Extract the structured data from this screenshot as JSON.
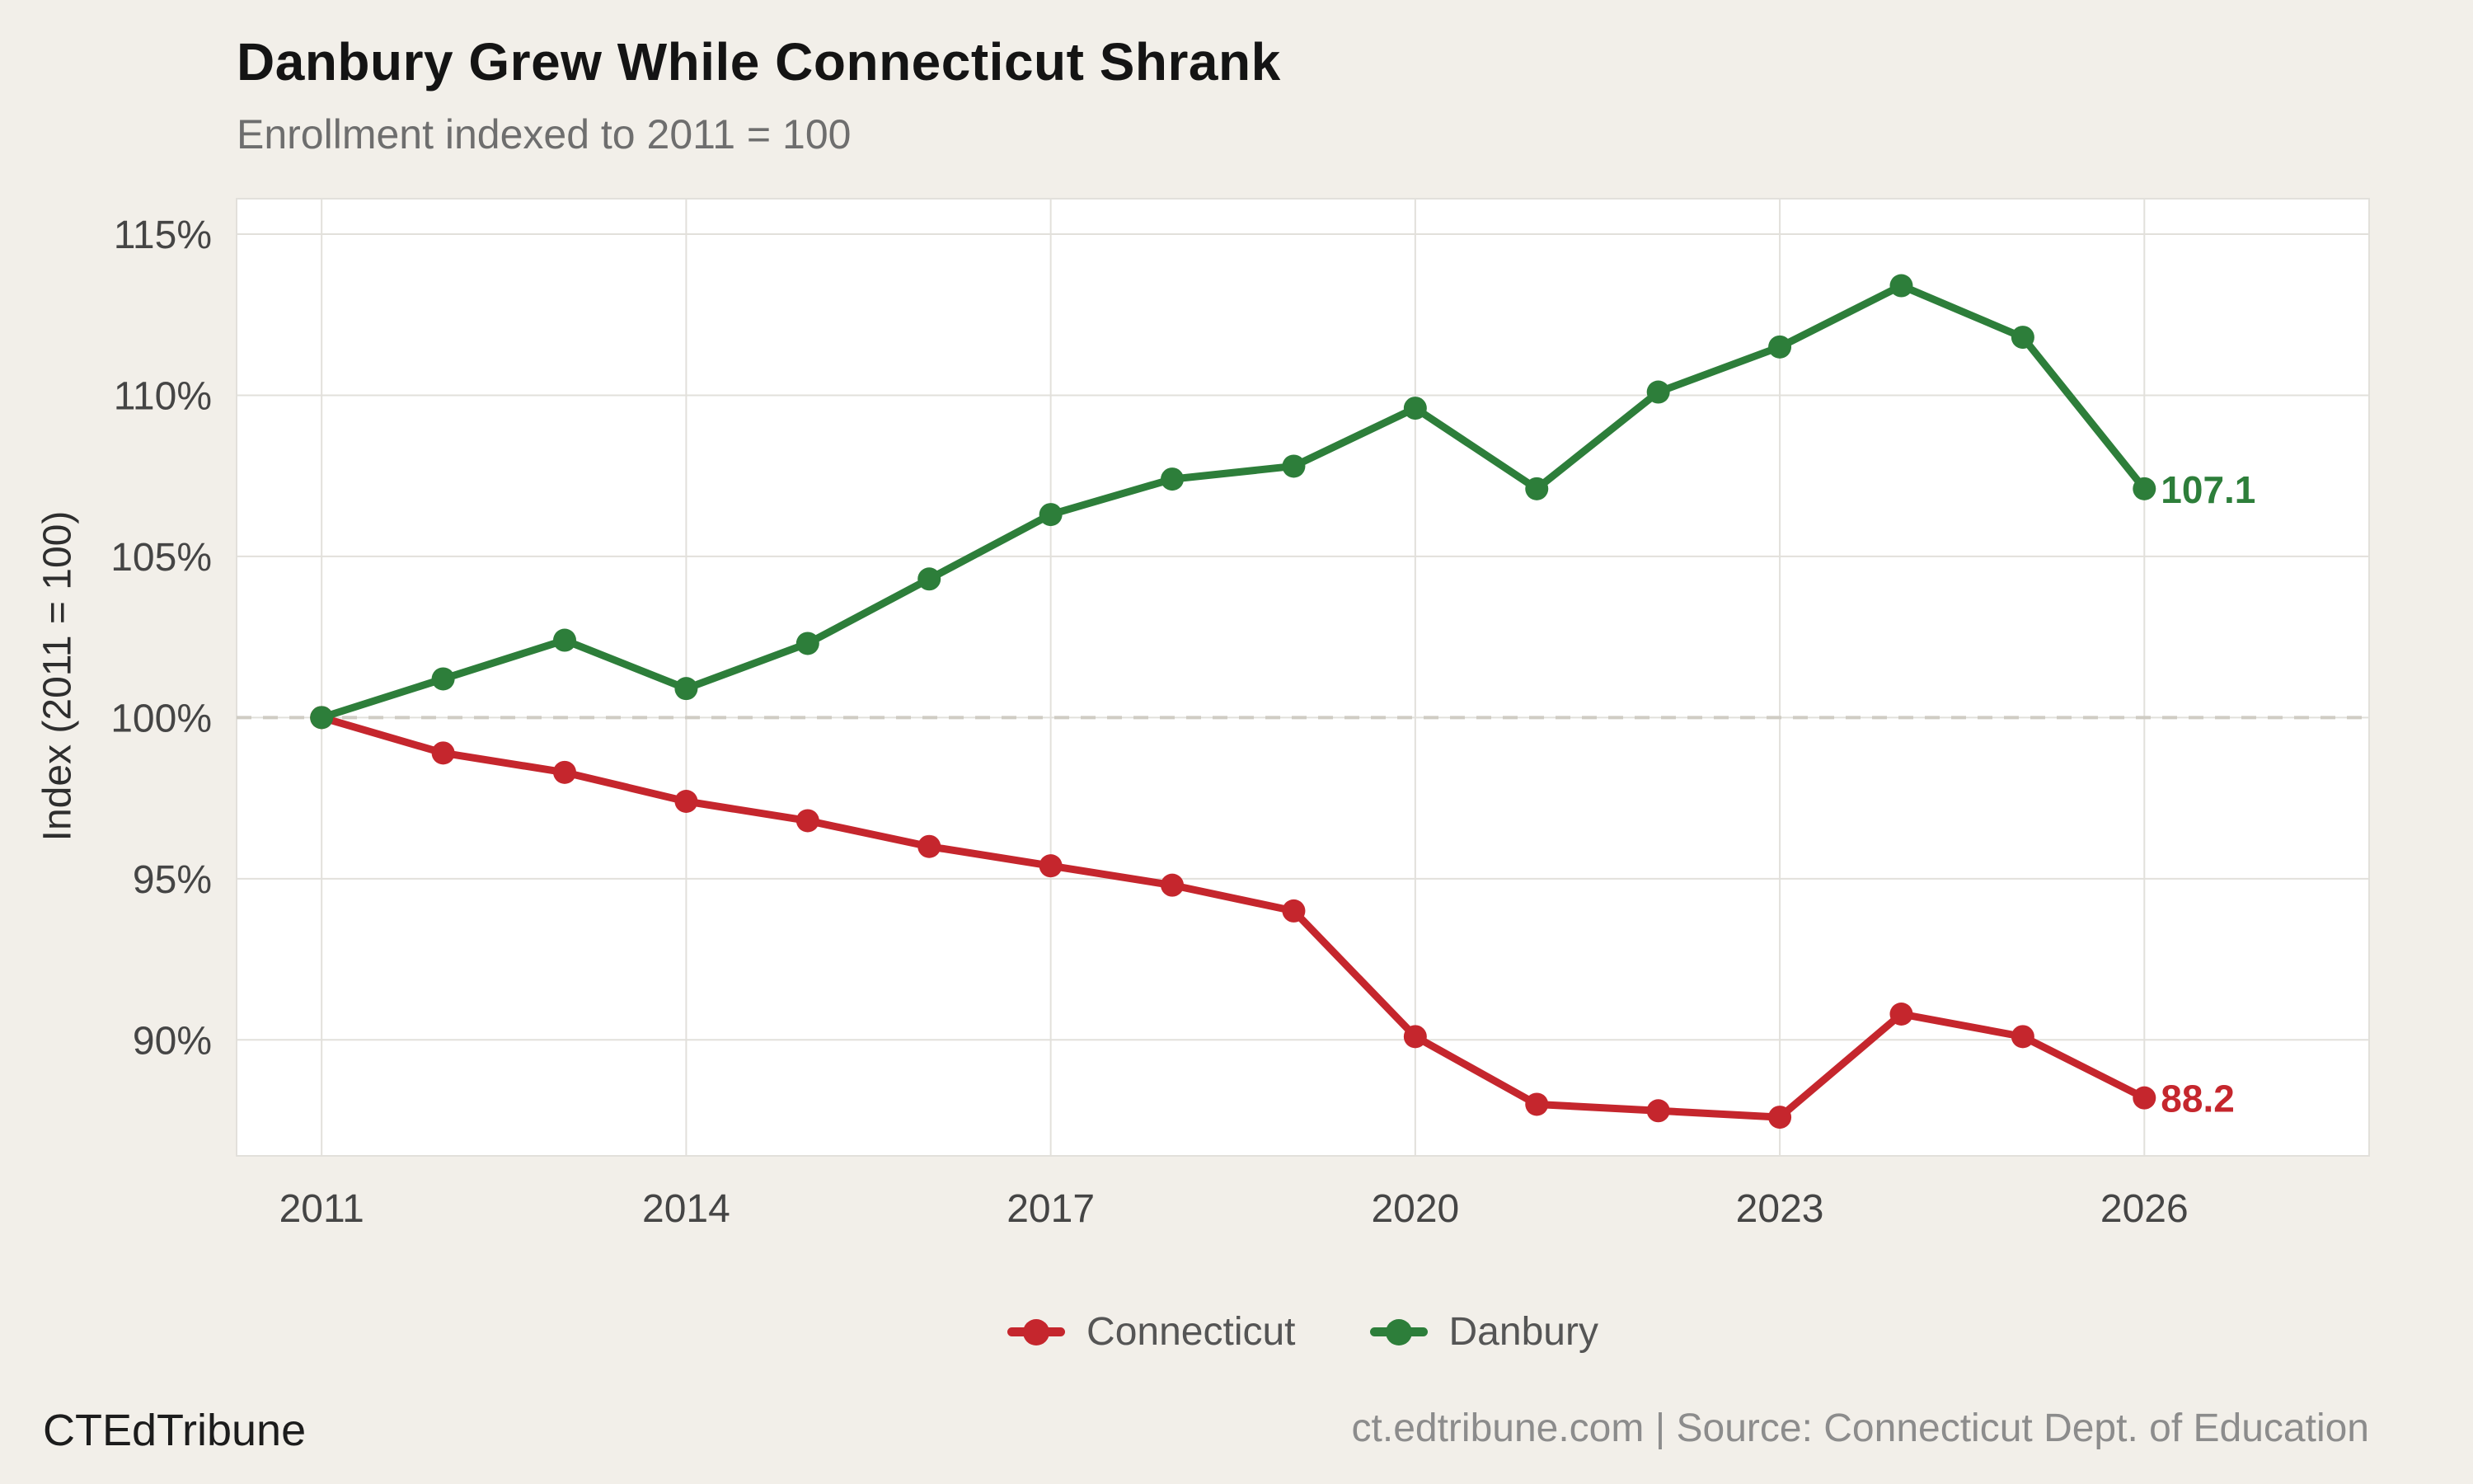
{
  "header": {
    "title": "Danbury Grew While Connecticut Shrank",
    "subtitle": "Enrollment indexed to 2011 = 100"
  },
  "footer": {
    "brand": "CTEdTribune",
    "source": "ct.edtribune.com | Source: Connecticut Dept. of Education"
  },
  "colors": {
    "background": "#f2efe9",
    "plot_background": "#ffffff",
    "grid": "#e2e0db",
    "reference_line": "#cfccc4",
    "connecticut": "#c5262d",
    "danbury": "#2d7e3a"
  },
  "chart_data": {
    "type": "line",
    "title": "Danbury Grew While Connecticut Shrank",
    "subtitle": "Enrollment indexed to 2011 = 100",
    "ylabel": "Index (2011 = 100)",
    "xlabel": "",
    "x": [
      2011,
      2012,
      2013,
      2014,
      2015,
      2016,
      2017,
      2018,
      2019,
      2020,
      2021,
      2022,
      2023,
      2024,
      2025,
      2026
    ],
    "series": [
      {
        "name": "Connecticut",
        "color": "#c5262d",
        "end_label": "88.2",
        "values": [
          100.0,
          98.9,
          98.3,
          97.4,
          96.8,
          96.0,
          95.4,
          94.8,
          94.0,
          90.1,
          88.0,
          87.8,
          87.6,
          90.8,
          90.1,
          88.2
        ]
      },
      {
        "name": "Danbury",
        "color": "#2d7e3a",
        "end_label": "107.1",
        "values": [
          100.0,
          101.2,
          102.4,
          100.9,
          102.3,
          104.3,
          106.3,
          107.4,
          107.8,
          109.6,
          107.1,
          110.1,
          111.5,
          113.4,
          111.8,
          107.1
        ]
      }
    ],
    "reference_line": 100,
    "xticks": [
      2011,
      2014,
      2017,
      2020,
      2023,
      2026
    ],
    "xtick_labels": [
      "2011",
      "2014",
      "2017",
      "2020",
      "2023",
      "2026"
    ],
    "yticks": [
      90,
      95,
      100,
      105,
      110,
      115
    ],
    "ytick_labels": [
      "90%",
      "95%",
      "100%",
      "105%",
      "110%",
      "115%"
    ],
    "xlim": [
      2010.3,
      2027.85
    ],
    "ylim": [
      86.4,
      116.1
    ],
    "grid": true,
    "legend_position": "bottom"
  }
}
